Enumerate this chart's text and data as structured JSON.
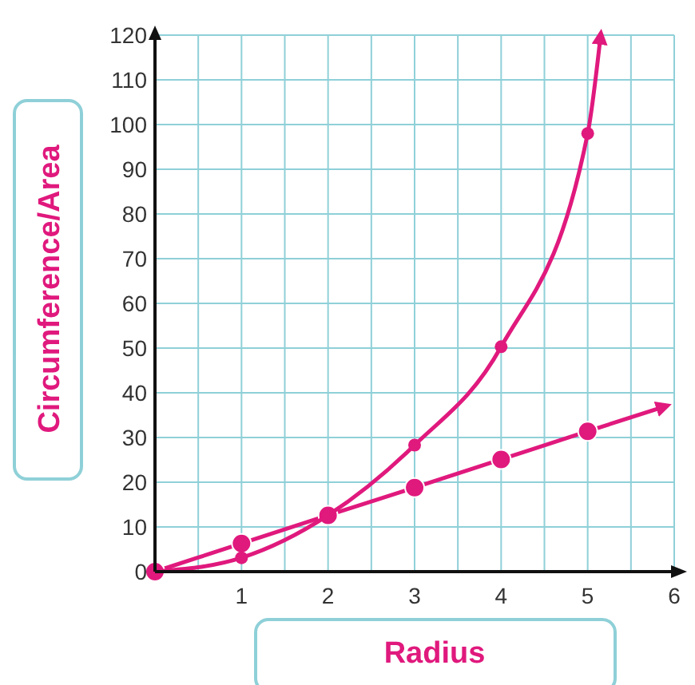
{
  "chart_data": {
    "type": "line",
    "xlabel": "Radius",
    "ylabel": "Circumference/Area",
    "xlim": [
      0,
      6
    ],
    "ylim": [
      0,
      120
    ],
    "xticks": [
      {
        "value": 0.5,
        "label": null
      },
      1,
      {
        "value": 1.5,
        "label": null
      },
      2,
      {
        "value": 2.5,
        "label": null
      },
      3,
      {
        "value": 3.5,
        "label": null
      },
      4,
      {
        "value": 4.5,
        "label": null
      },
      5,
      {
        "value": 5.5,
        "label": null
      },
      6
    ],
    "yticks": [
      0,
      10,
      20,
      30,
      40,
      50,
      60,
      70,
      80,
      90,
      100,
      110,
      120
    ],
    "grid": true,
    "marker": "circle",
    "line_style": "solid",
    "series": [
      {
        "color": "#e0197d",
        "x": [
          0,
          1,
          2,
          3,
          4,
          5,
          5.9
        ],
        "values": [
          0,
          6.3,
          12.6,
          18.8,
          25.1,
          31.4,
          37
        ]
      },
      {
        "color": "#e0197d",
        "x": [
          0,
          1,
          2,
          3,
          4,
          5,
          5.15
        ],
        "values": [
          0,
          3.1,
          12.6,
          28.3,
          50.3,
          98,
          120
        ]
      }
    ]
  }
}
